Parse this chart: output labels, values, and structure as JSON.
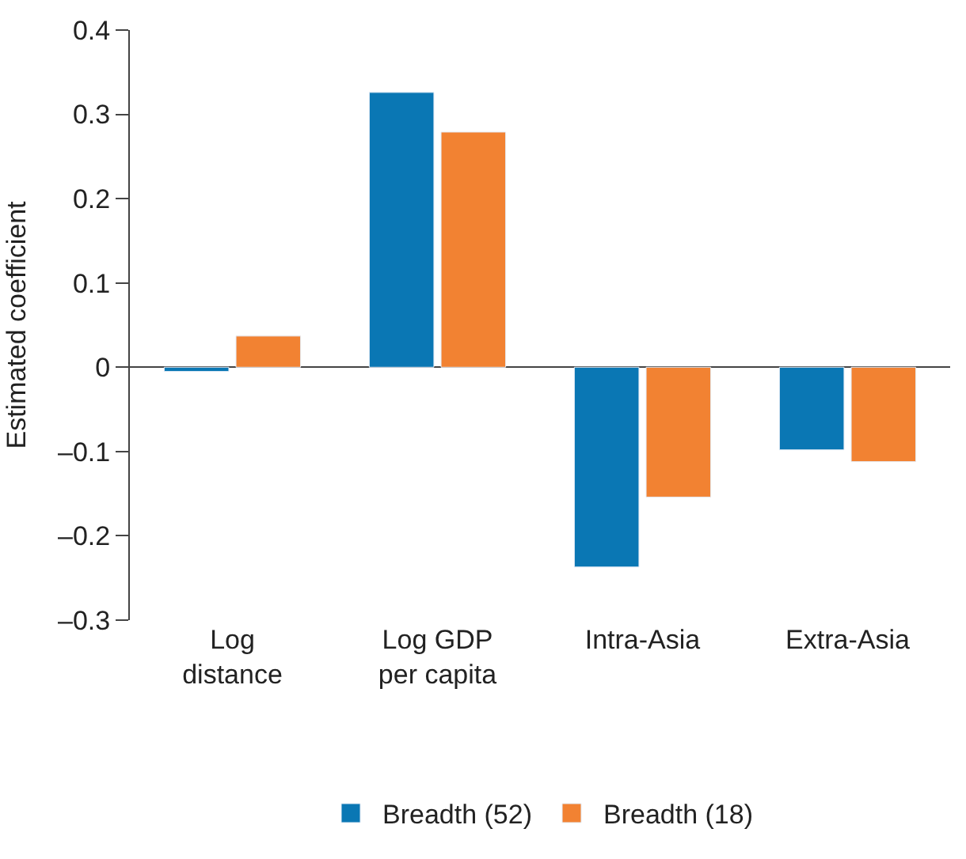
{
  "chart_data": {
    "type": "bar",
    "ylabel": "Estimated coefficient",
    "categories": [
      "Log\ndistance",
      "Log GDP\nper capita",
      "Intra-Asia",
      "Extra-Asia"
    ],
    "series": [
      {
        "name": "Breadth (52)",
        "color": "#0a77b4",
        "values": [
          -0.005,
          0.326,
          -0.237,
          -0.098
        ]
      },
      {
        "name": "Breadth (18)",
        "color": "#f28232",
        "values": [
          0.037,
          0.279,
          -0.154,
          -0.112
        ]
      }
    ],
    "ylim": [
      -0.3,
      0.4
    ],
    "yticks": [
      {
        "value": -0.3,
        "label": "–0.3"
      },
      {
        "value": -0.2,
        "label": "–0.2"
      },
      {
        "value": -0.1,
        "label": "–0.1"
      },
      0,
      0.1,
      0.2,
      0.3,
      0.4
    ],
    "legend": "bottom"
  }
}
